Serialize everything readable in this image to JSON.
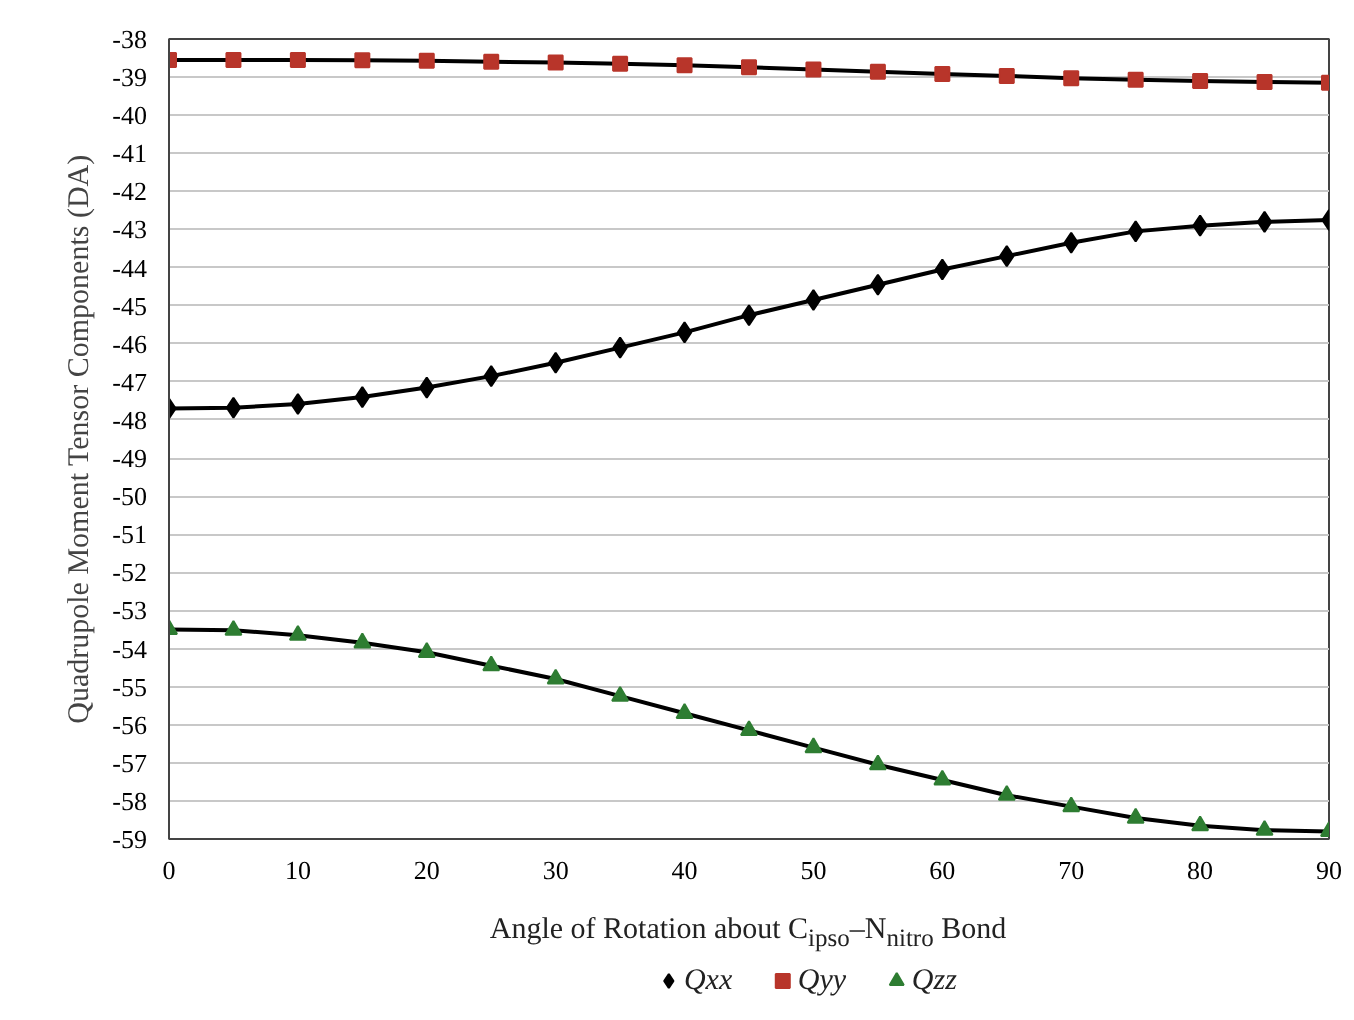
{
  "chart_data": {
    "type": "line",
    "xlabel": "Angle of Rotation about C$_{ipso}$–N$_{nitro}$ Bond",
    "ylabel": "Quadrupole Moment Tensor Components (DA)",
    "x": [
      0,
      5,
      10,
      15,
      20,
      25,
      30,
      35,
      40,
      45,
      50,
      55,
      60,
      65,
      70,
      75,
      80,
      85,
      90
    ],
    "series": [
      {
        "name": "Qxx",
        "color": "#000000",
        "marker": "diamond",
        "values": [
          -47.7,
          -47.68,
          -47.58,
          -47.4,
          -47.15,
          -46.85,
          -46.5,
          -46.1,
          -45.7,
          -45.25,
          -44.85,
          -44.45,
          -44.05,
          -43.7,
          -43.35,
          -43.05,
          -42.9,
          -42.8,
          -42.75
        ]
      },
      {
        "name": "Qyy",
        "color": "#b8352a",
        "marker": "square",
        "values": [
          -38.55,
          -38.55,
          -38.55,
          -38.56,
          -38.57,
          -38.6,
          -38.62,
          -38.65,
          -38.69,
          -38.74,
          -38.8,
          -38.86,
          -38.92,
          -38.97,
          -39.03,
          -39.07,
          -39.1,
          -39.13,
          -39.15
        ]
      },
      {
        "name": "Qzz",
        "color": "#2e7d32",
        "marker": "triangle",
        "values": [
          -53.5,
          -53.52,
          -53.65,
          -53.85,
          -54.1,
          -54.45,
          -54.8,
          -55.25,
          -55.7,
          -56.15,
          -56.6,
          -57.05,
          -57.45,
          -57.85,
          -58.15,
          -58.45,
          -58.65,
          -58.77,
          -58.8
        ]
      }
    ],
    "xlim": [
      0,
      90
    ],
    "xticks": [
      0,
      10,
      20,
      30,
      40,
      50,
      60,
      70,
      80,
      90
    ],
    "ylim": [
      -59,
      -38
    ],
    "yticks": [
      -38,
      -39,
      -40,
      -41,
      -42,
      -43,
      -44,
      -45,
      -46,
      -47,
      -48,
      -49,
      -50,
      -51,
      -52,
      -53,
      -54,
      -55,
      -56,
      -57,
      -58,
      -59
    ],
    "grid": "y",
    "legend": "bottom",
    "line_style": "solid"
  }
}
